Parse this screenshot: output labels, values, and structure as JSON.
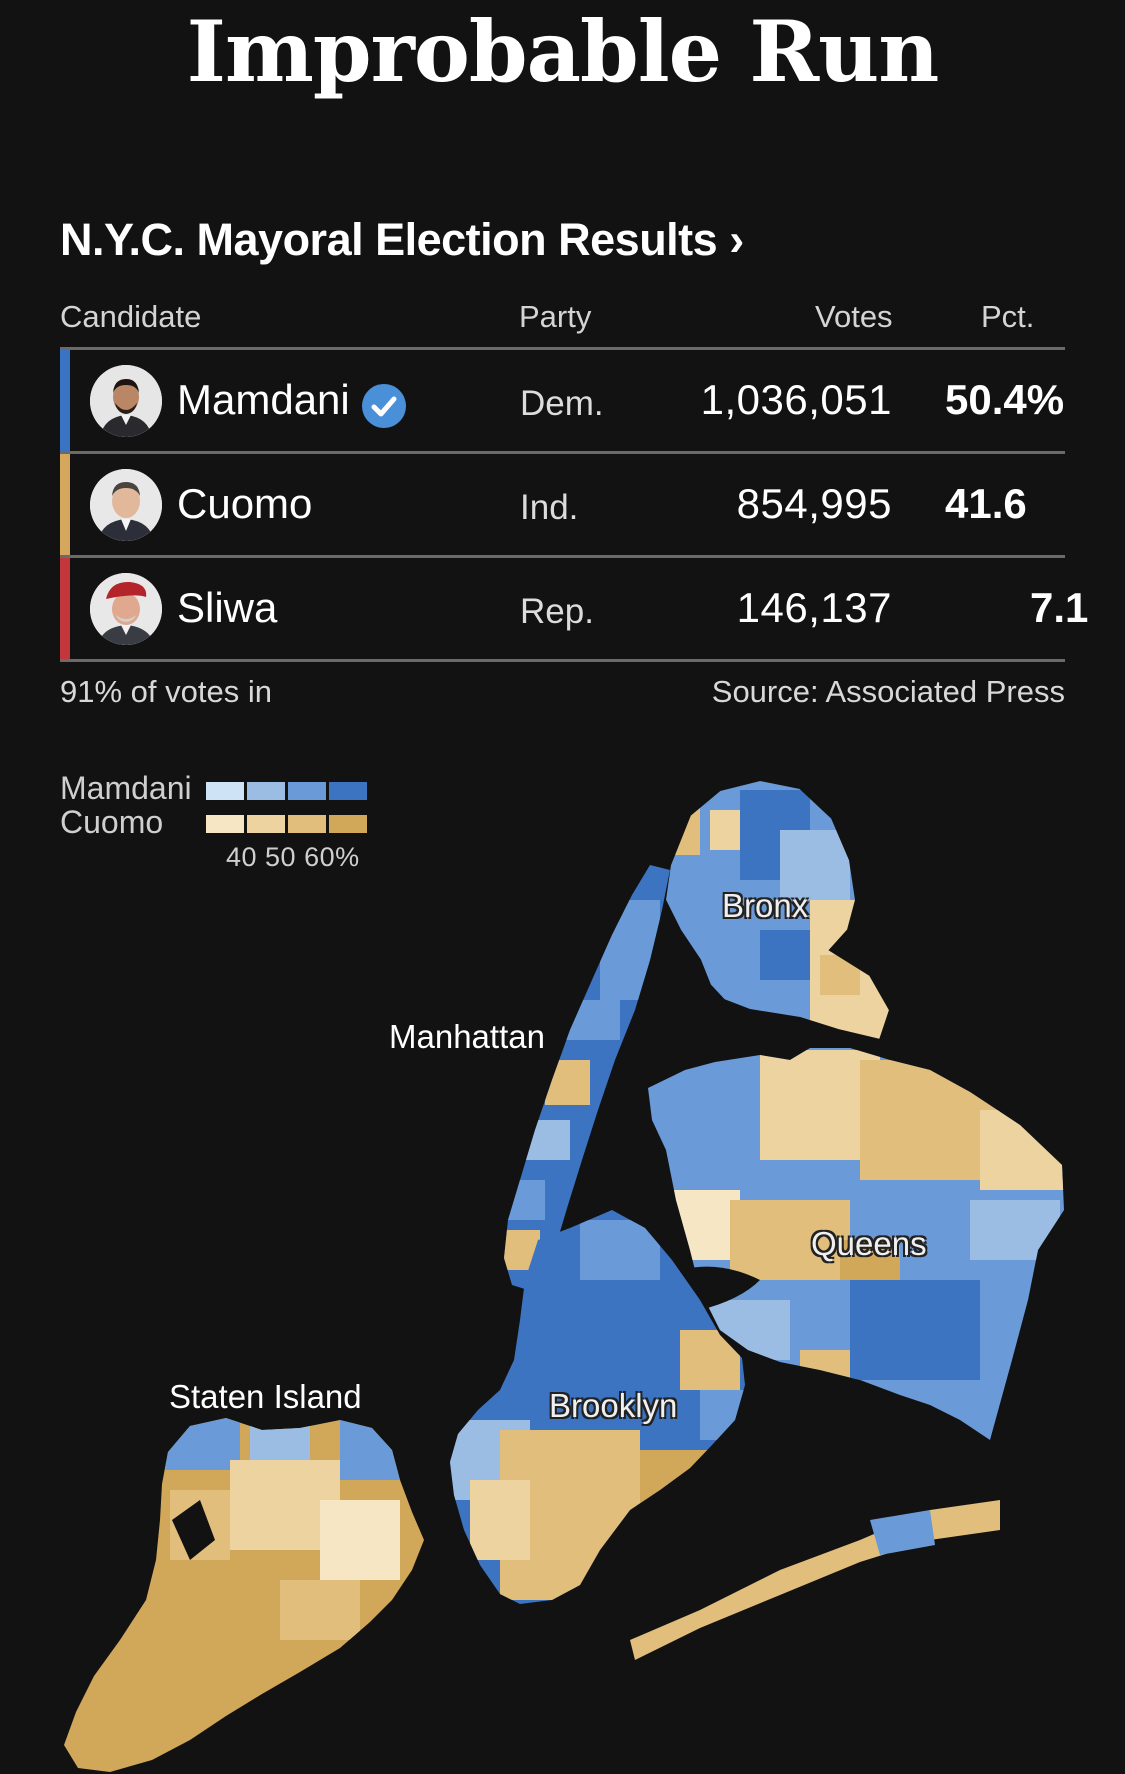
{
  "title": "Improbable Run",
  "subtitle": "N.Y.C. Mayoral Election Results ›",
  "table": {
    "headers": {
      "candidate": "Candidate",
      "party": "Party",
      "votes": "Votes",
      "pct": "Pct."
    },
    "rows": [
      {
        "name": "Mamdani",
        "party": "Dem.",
        "votes": "1,036,051",
        "pct": "50.4%",
        "color": "#3b73c4",
        "winner": true
      },
      {
        "name": "Cuomo",
        "party": "Ind.",
        "votes": "854,995",
        "pct": "41.6",
        "color": "#d4a75c",
        "winner": false
      },
      {
        "name": "Sliwa",
        "party": "Rep.",
        "votes": "146,137",
        "pct": "7.1",
        "color": "#c2373b",
        "winner": false
      }
    ],
    "votes_in": "91% of votes in",
    "source": "Source: Associated Press"
  },
  "legend": {
    "mamdani_label": "Mamdani",
    "cuomo_label": "Cuomo",
    "ticks": "40 50 60%",
    "mamdani_colors": [
      "#cfe3f7",
      "#9bbde4",
      "#6a9bd8",
      "#3d74c2"
    ],
    "cuomo_colors": [
      "#f6e6c4",
      "#ecd3a0",
      "#e1be7c",
      "#d1a75a"
    ]
  },
  "map": {
    "labels": {
      "bronx": "Bronx",
      "manhattan": "Manhattan",
      "queens": "Queens",
      "brooklyn": "Brooklyn",
      "staten_island": "Staten Island"
    }
  }
}
